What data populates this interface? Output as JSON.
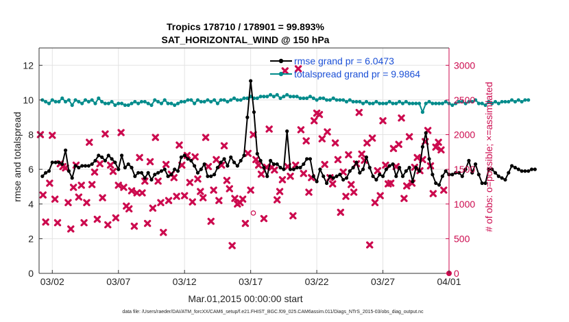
{
  "chart_data": {
    "type": "line",
    "title": "Tropics 178710 / 178901 = 99.893%",
    "subtitle": "SAT_HORIZONTAL_WIND @ 150 hPa",
    "xlabel": "Mar.01,2015 00:00:00 start",
    "ylabel_left": "rmse and totalspread",
    "ylabel_right": "# of obs: o=possible; ×=assimilated",
    "xlim": [
      0,
      31
    ],
    "ylim_left": [
      0,
      13
    ],
    "ylim_right": [
      0,
      3250
    ],
    "x_ticks": [
      {
        "x": 1,
        "label": "03/02"
      },
      {
        "x": 6,
        "label": "03/07"
      },
      {
        "x": 11,
        "label": "03/12"
      },
      {
        "x": 16,
        "label": "03/17"
      },
      {
        "x": 21,
        "label": "03/22"
      },
      {
        "x": 26,
        "label": "03/27"
      },
      {
        "x": 31,
        "label": "04/01"
      }
    ],
    "y_ticks_left": [
      0,
      2,
      4,
      6,
      8,
      10,
      12
    ],
    "y_ticks_right": [
      0,
      500,
      1000,
      1500,
      2000,
      2500,
      3000
    ],
    "grid": true,
    "legend_position": "top-right",
    "colors": {
      "rmse": "#000000",
      "spread": "#008b8b",
      "obs": "#cc0a4e"
    },
    "series": [
      {
        "name": "rmse grand pr = 6.0473",
        "axis": "left",
        "values": [
          5.6,
          5.8,
          5.9,
          6.4,
          6.4,
          6.4,
          6.3,
          7.1,
          5.9,
          5.5,
          6.2,
          6.1,
          6.2,
          6.2,
          6.2,
          6.3,
          6.5,
          6.8,
          6.7,
          6.5,
          6.8,
          6.6,
          6.4,
          6.0,
          6.8,
          6.1,
          6.3,
          6.1,
          5.6,
          5.8,
          5.8,
          5.5,
          5.8,
          5.4,
          5.7,
          5.8,
          5.9,
          6.0,
          5.6,
          5.7,
          6.0,
          5.9,
          6.7,
          6.8,
          6.6,
          6.5,
          6.2,
          5.8,
          6.0,
          6.3,
          5.6,
          5.6,
          5.7,
          6.1,
          6.4,
          6.6,
          6.2,
          6.7,
          6.4,
          6.2,
          6.5,
          6.8,
          9.0,
          11.1,
          9.3,
          6.9,
          6.5,
          6.1,
          5.6,
          6.5,
          6.3,
          6.3,
          6.1,
          6.0,
          8.2,
          6.0,
          6.0,
          6.1,
          6.1,
          6.3,
          6.6,
          6.6,
          5.6,
          5.3,
          6.0,
          5.6,
          5.2,
          5.6,
          5.5,
          5.6,
          5.7,
          5.4,
          5.5,
          5.9,
          6.1,
          6.4,
          5.8,
          6.0,
          6.7,
          6.1,
          5.6,
          5.4,
          5.7,
          5.6,
          6.0,
          6.2,
          6.3,
          5.6,
          6.1,
          5.6,
          5.9,
          6.1,
          5.3,
          6.1,
          5.9,
          7.3,
          8.1,
          6.6,
          5.7,
          5.2,
          5.1,
          5.6,
          5.9,
          5.7,
          5.7,
          5.8,
          5.8,
          5.6,
          6.0,
          6.5,
          5.8,
          6.3,
          5.7,
          5.2,
          5.2,
          6.0,
          6.0,
          5.8,
          5.6,
          5.5,
          5.4,
          5.8,
          6.2,
          6.1,
          6.0,
          5.9,
          5.9,
          5.9,
          6.0,
          6.0
        ],
        "x_start": 0.25,
        "x_step": 0.25
      },
      {
        "name": "totalspread grand pr = 9.9864",
        "axis": "left",
        "values": [
          10.0,
          9.9,
          9.8,
          10.0,
          9.9,
          9.9,
          10.1,
          9.9,
          10.0,
          9.7,
          10.0,
          9.9,
          9.8,
          10.0,
          9.9,
          10.0,
          9.8,
          10.1,
          9.9,
          9.8,
          9.8,
          9.9,
          9.7,
          9.8,
          9.8,
          9.7,
          9.7,
          9.8,
          9.9,
          9.8,
          9.9,
          9.9,
          9.8,
          9.7,
          10.0,
          9.9,
          9.8,
          10.0,
          9.8,
          9.8,
          9.7,
          9.8,
          9.9,
          9.9,
          10.0,
          10.0,
          9.8,
          10.0,
          9.9,
          9.9,
          10.0,
          9.9,
          10.0,
          9.8,
          10.0,
          10.0,
          9.9,
          10.0,
          10.1,
          10.0,
          10.0,
          10.1,
          10.1,
          10.2,
          10.1,
          10.1,
          10.2,
          10.2,
          10.2,
          10.3,
          10.2,
          10.3,
          10.1,
          10.2,
          10.3,
          10.2,
          10.2,
          10.2,
          10.1,
          10.1,
          10.1,
          10.2,
          10.1,
          10.0,
          10.1,
          10.1,
          10.0,
          10.0,
          10.1,
          10.0,
          10.0,
          10.0,
          9.9,
          10.0,
          9.9,
          9.9,
          9.9,
          9.8,
          9.9,
          9.8,
          9.8,
          9.9,
          9.8,
          9.8,
          9.8,
          9.9,
          9.8,
          9.8,
          9.9,
          9.8,
          9.9,
          9.8,
          9.8,
          9.8,
          9.8,
          9.3,
          9.8,
          9.9,
          9.8,
          9.8,
          9.8,
          9.8,
          9.9,
          9.8,
          9.7,
          9.8,
          9.9,
          9.9,
          9.8,
          9.9,
          9.9,
          10.0,
          9.8,
          9.8,
          9.7,
          9.9,
          9.8,
          9.9,
          9.8,
          9.9,
          9.9,
          9.9,
          10.0,
          9.9,
          10.0,
          9.9,
          10.0,
          10.0
        ],
        "x_start": 0.25,
        "x_step": 0.25
      },
      {
        "name": "# of obs assimilated",
        "axis": "right",
        "points": [
          [
            0.1,
            2000
          ],
          [
            0.3,
            1130
          ],
          [
            0.5,
            740
          ],
          [
            0.8,
            1300
          ],
          [
            1.0,
            1990
          ],
          [
            1.2,
            1070
          ],
          [
            1.4,
            730
          ],
          [
            1.6,
            1580
          ],
          [
            1.8,
            1540
          ],
          [
            2.0,
            1520
          ],
          [
            2.2,
            1020
          ],
          [
            2.4,
            640
          ],
          [
            2.6,
            1240
          ],
          [
            2.8,
            1560
          ],
          [
            3.0,
            1100
          ],
          [
            3.2,
            1270
          ],
          [
            3.4,
            730
          ],
          [
            3.6,
            1020
          ],
          [
            3.8,
            1890
          ],
          [
            4.0,
            1280
          ],
          [
            4.2,
            1460
          ],
          [
            4.4,
            780
          ],
          [
            4.6,
            1580
          ],
          [
            4.8,
            1090
          ],
          [
            5.0,
            2010
          ],
          [
            5.2,
            700
          ],
          [
            5.4,
            1560
          ],
          [
            5.6,
            1470
          ],
          [
            5.8,
            800
          ],
          [
            6.0,
            1270
          ],
          [
            6.2,
            2030
          ],
          [
            6.4,
            1240
          ],
          [
            6.6,
            970
          ],
          [
            6.8,
            930
          ],
          [
            7.0,
            1190
          ],
          [
            7.2,
            680
          ],
          [
            7.4,
            1160
          ],
          [
            7.6,
            1670
          ],
          [
            7.8,
            1160
          ],
          [
            8.0,
            1330
          ],
          [
            8.2,
            720
          ],
          [
            8.4,
            1610
          ],
          [
            8.6,
            940
          ],
          [
            8.8,
            1960
          ],
          [
            9.0,
            1330
          ],
          [
            9.2,
            1020
          ],
          [
            9.4,
            590
          ],
          [
            9.6,
            1570
          ],
          [
            9.8,
            1050
          ],
          [
            10.0,
            1430
          ],
          [
            10.2,
            1380
          ],
          [
            10.4,
            1110
          ],
          [
            10.6,
            1850
          ],
          [
            10.8,
            1560
          ],
          [
            11.0,
            1120
          ],
          [
            11.2,
            1700
          ],
          [
            11.4,
            1310
          ],
          [
            11.6,
            1030
          ],
          [
            11.8,
            1680
          ],
          [
            12.0,
            1360
          ],
          [
            12.2,
            1180
          ],
          [
            12.4,
            1090
          ],
          [
            12.6,
            1960
          ],
          [
            12.8,
            1540
          ],
          [
            13.0,
            750
          ],
          [
            13.2,
            1200
          ],
          [
            13.4,
            1640
          ],
          [
            13.6,
            1050
          ],
          [
            13.8,
            1560
          ],
          [
            14.0,
            1840
          ],
          [
            14.2,
            1340
          ],
          [
            14.4,
            1220
          ],
          [
            14.6,
            400
          ],
          [
            14.8,
            1080
          ],
          [
            15.0,
            1000
          ],
          [
            15.2,
            1020
          ],
          [
            15.4,
            1070
          ],
          [
            15.6,
            720
          ],
          [
            15.8,
            1730
          ],
          [
            16.0,
            1200
          ],
          [
            16.2,
            2000
          ],
          [
            16.4,
            1640
          ],
          [
            16.6,
            1560
          ],
          [
            16.8,
            1430
          ],
          [
            17.0,
            790
          ],
          [
            17.2,
            1530
          ],
          [
            17.4,
            2080
          ],
          [
            17.6,
            1530
          ],
          [
            17.8,
            1490
          ],
          [
            18.0,
            1060
          ],
          [
            18.2,
            1180
          ],
          [
            18.4,
            1350
          ],
          [
            18.6,
            2920
          ],
          [
            18.8,
            1540
          ],
          [
            19.0,
            1400
          ],
          [
            19.2,
            830
          ],
          [
            19.4,
            1560
          ],
          [
            19.6,
            2950
          ],
          [
            19.8,
            2070
          ],
          [
            20.0,
            1440
          ],
          [
            20.2,
            1910
          ],
          [
            20.4,
            1170
          ],
          [
            20.6,
            1380
          ],
          [
            20.8,
            2200
          ],
          [
            21.0,
            2310
          ],
          [
            21.2,
            2290
          ],
          [
            21.4,
            1940
          ],
          [
            21.6,
            1570
          ],
          [
            21.8,
            2040
          ],
          [
            22.0,
            1380
          ],
          [
            22.2,
            1290
          ],
          [
            22.4,
            1880
          ],
          [
            22.6,
            1640
          ],
          [
            22.8,
            880
          ],
          [
            23.0,
            1460
          ],
          [
            23.2,
            1110
          ],
          [
            23.4,
            1710
          ],
          [
            23.6,
            1280
          ],
          [
            23.8,
            1170
          ],
          [
            24.0,
            1580
          ],
          [
            24.2,
            2320
          ],
          [
            24.4,
            1720
          ],
          [
            24.6,
            1630
          ],
          [
            24.8,
            1880
          ],
          [
            25.0,
            410
          ],
          [
            25.2,
            1950
          ],
          [
            25.4,
            1020
          ],
          [
            25.6,
            1480
          ],
          [
            25.8,
            1120
          ],
          [
            26.0,
            2200
          ],
          [
            26.2,
            1560
          ],
          [
            26.4,
            1290
          ],
          [
            26.6,
            1300
          ],
          [
            26.8,
            1800
          ],
          [
            27.0,
            1540
          ],
          [
            27.2,
            1860
          ],
          [
            27.4,
            2240
          ],
          [
            27.6,
            1080
          ],
          [
            27.8,
            1260
          ],
          [
            28.0,
            1970
          ],
          [
            28.2,
            1300
          ],
          [
            28.4,
            1530
          ],
          [
            28.6,
            1670
          ],
          [
            28.8,
            1480
          ],
          [
            29.0,
            1640
          ],
          [
            29.2,
            1900
          ],
          [
            29.4,
            2060
          ],
          [
            29.6,
            1550
          ],
          [
            29.8,
            1150
          ],
          [
            30.0,
            1820
          ],
          [
            30.2,
            1890
          ],
          [
            30.4,
            1780
          ],
          [
            30.6,
            1200
          ]
        ]
      },
      {
        "name": "# of obs possible",
        "axis": "right",
        "points": [
          [
            16.2,
            870
          ]
        ]
      }
    ],
    "footnote": "data file: /Users/raeder/DAI/ATM_forcXX/CAM6_setup/f.e21.FHIST_BGC.f09_025.CAM6assim.011/Diags_NTrS_2015-03/obs_diag_output.nc"
  }
}
